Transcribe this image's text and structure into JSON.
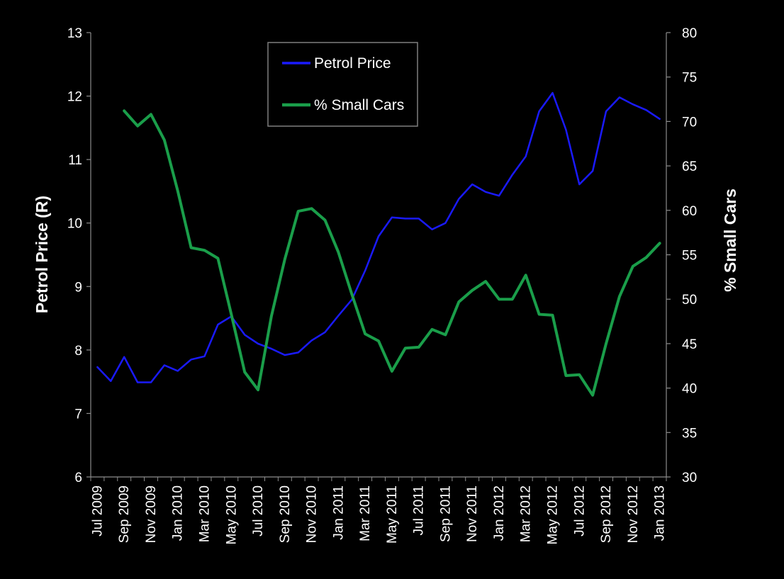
{
  "chart_data": {
    "type": "line",
    "x_categories": [
      "Jul 2009",
      "Aug 2009",
      "Sep 2009",
      "Oct 2009",
      "Nov 2009",
      "Dec 2009",
      "Jan 2010",
      "Feb 2010",
      "Mar 2010",
      "Apr 2010",
      "May 2010",
      "Jun 2010",
      "Jul 2010",
      "Aug 2010",
      "Sep 2010",
      "Oct 2010",
      "Nov 2010",
      "Dec 2010",
      "Jan 2011",
      "Feb 2011",
      "Mar 2011",
      "Apr 2011",
      "May 2011",
      "Jun 2011",
      "Jul 2011",
      "Aug 2011",
      "Sep 2011",
      "Oct 2011",
      "Nov 2011",
      "Dec 2011",
      "Jan 2012",
      "Feb 2012",
      "Mar 2012",
      "Apr 2012",
      "May 2012",
      "Jun 2012",
      "Jul 2012",
      "Aug 2012",
      "Sep 2012",
      "Oct 2012",
      "Nov 2012",
      "Dec 2012",
      "Jan 2013"
    ],
    "x_tick_labels": [
      "Jul 2009",
      "Sep 2009",
      "Nov 2009",
      "Jan 2010",
      "Mar 2010",
      "May 2010",
      "Jul 2010",
      "Sep 2010",
      "Nov 2010",
      "Jan 2011",
      "Mar 2011",
      "May 2011",
      "Jul 2011",
      "Sep 2011",
      "Nov 2011",
      "Jan 2012",
      "Mar 2012",
      "May 2012",
      "Jul 2012",
      "Sep 2012",
      "Nov 2012",
      "Jan 2013"
    ],
    "y_left": {
      "label": "Petrol Price  (R)",
      "min": 6,
      "max": 13,
      "ticks": [
        "6",
        "7",
        "8",
        "9",
        "10",
        "11",
        "12",
        "13"
      ]
    },
    "y_right": {
      "label": "% Small Cars",
      "min": 30,
      "max": 80,
      "ticks": [
        "30",
        "35",
        "40",
        "45",
        "50",
        "55",
        "60",
        "65",
        "70",
        "75",
        "80"
      ]
    },
    "series": [
      {
        "name": "Petrol Price",
        "axis": "left",
        "color": "#1a1aff",
        "values": [
          7.73,
          7.51,
          7.89,
          7.49,
          7.49,
          7.76,
          7.67,
          7.85,
          7.9,
          8.4,
          8.53,
          8.24,
          8.1,
          8.02,
          7.92,
          7.96,
          8.15,
          8.28,
          8.54,
          8.79,
          9.25,
          9.79,
          10.09,
          10.07,
          10.07,
          9.9,
          10.0,
          10.38,
          10.61,
          10.49,
          10.43,
          10.76,
          11.05,
          11.76,
          12.05,
          11.47,
          10.61,
          10.82,
          11.76,
          11.98,
          11.87,
          11.78,
          11.64
        ]
      },
      {
        "name": "% Small Cars",
        "axis": "right",
        "color": "#1a9e4a",
        "values": [
          null,
          null,
          71.2,
          69.5,
          70.8,
          67.9,
          62.2,
          55.8,
          55.5,
          54.6,
          48.3,
          41.8,
          39.8,
          48.1,
          54.5,
          59.9,
          60.2,
          58.9,
          55.3,
          50.6,
          46.1,
          45.3,
          41.9,
          44.5,
          44.6,
          46.6,
          46.0,
          49.7,
          51.0,
          52.0,
          50.0,
          50.0,
          52.7,
          48.3,
          48.2,
          41.4,
          41.5,
          39.2,
          45.0,
          50.3,
          53.7,
          54.7,
          56.3
        ]
      }
    ],
    "legend": {
      "position": "top-center",
      "entries": [
        "Petrol Price",
        "% Small Cars"
      ]
    },
    "grid": false
  }
}
